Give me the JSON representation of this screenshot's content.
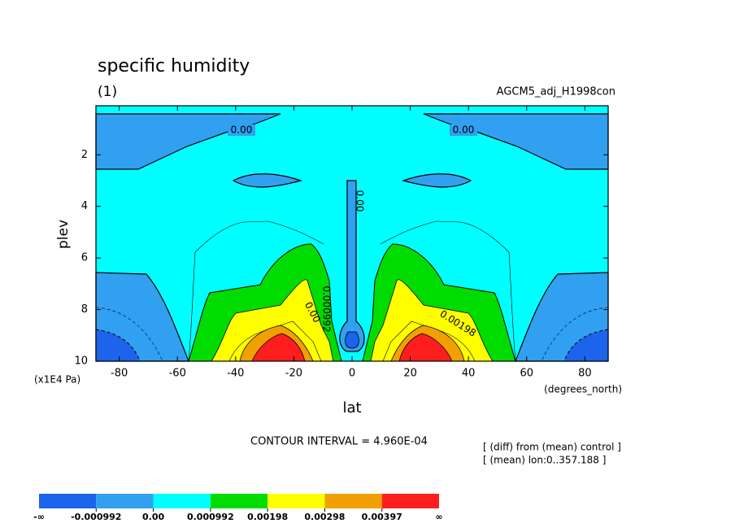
{
  "chart_data": {
    "type": "contour",
    "title": "specific humidity",
    "subtitle": "(1)",
    "run_label": "AGCM5_adj_H1998con",
    "x_label": "lat",
    "y_label": "plev",
    "x_unit": "(degrees_north)",
    "y_unit": "(x1E4 Pa)",
    "xlim": [
      -88,
      88
    ],
    "ylim": [
      10,
      0.1
    ],
    "xticks": [
      -80,
      -60,
      -40,
      -20,
      0,
      20,
      40,
      60,
      80
    ],
    "yticks": [
      2,
      4,
      6,
      8,
      10
    ],
    "contour_interval": "CONTOUR INTERVAL = 4.960E-04",
    "notes": [
      "[ (diff) from (mean) control ]",
      "[ (mean) lon:0..357.188 ]"
    ],
    "contour_labels": [
      "0.00",
      "0.00",
      "0.00",
      "0.00198",
      "0.000992",
      "0.00"
    ],
    "colorbar": {
      "colors": [
        "#1c64ec",
        "#32a0f0",
        "#00ffff",
        "#00dc00",
        "#ffff00",
        "#f0a000",
        "#ff1e1e"
      ],
      "lower_label": "-∞",
      "upper_label": "∞",
      "levels": [
        -0.000992,
        {
          "value": 0,
          "label": "0.00"
        },
        0.000992,
        0.00198,
        0.00298,
        0.00397
      ]
    }
  }
}
